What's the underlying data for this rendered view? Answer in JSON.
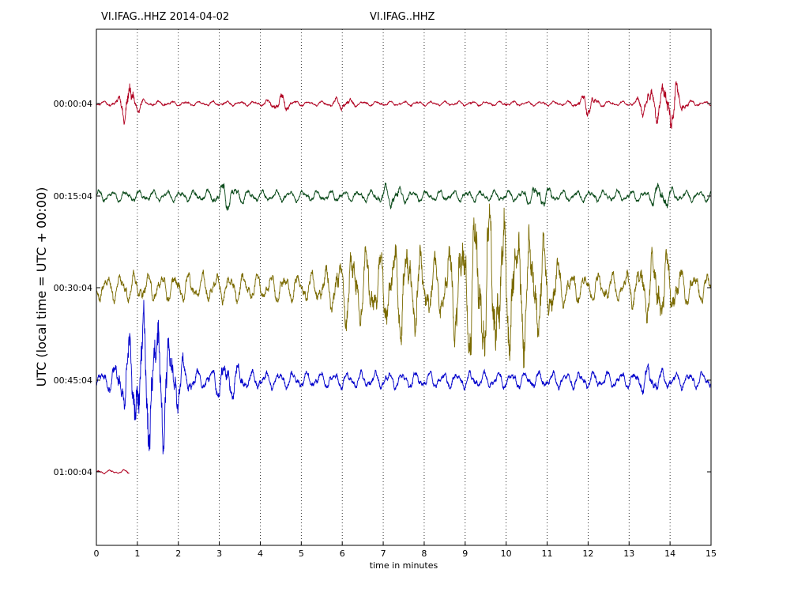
{
  "chart_data": {
    "type": "line",
    "title_left": "VI.IFAG..HHZ 2014-04-02",
    "title_center": "VI.IFAG..HHZ",
    "xlabel": "time in minutes",
    "ylabel": "UTC (local time = UTC + 00:00)",
    "xlim": [
      0,
      15
    ],
    "x_ticks": [
      "0",
      "1",
      "2",
      "3",
      "4",
      "5",
      "6",
      "7",
      "8",
      "9",
      "10",
      "11",
      "12",
      "13",
      "14",
      "15"
    ],
    "y_ticks": [
      "00:00:04",
      "00:15:04",
      "00:30:04",
      "00:45:04",
      "01:00:04"
    ],
    "grid": "vertical dotted",
    "series": [
      {
        "row": "00:00:04",
        "color": "#b00020",
        "x_end": 15,
        "bursts": [
          [
            0.8,
            0.45,
            4.5
          ],
          [
            4.5,
            0.15,
            4.0
          ],
          [
            6.0,
            0.1,
            4.0
          ],
          [
            12.0,
            0.2,
            4.5
          ],
          [
            13.5,
            0.3,
            4.0
          ],
          [
            14.0,
            0.5,
            3.5
          ]
        ],
        "base_amp": 0.05
      },
      {
        "row": "00:15:04",
        "color": "#0a4a1a",
        "x_end": 15,
        "bursts": [
          [
            3.2,
            0.2,
            3.5
          ],
          [
            7.2,
            0.15,
            4.0
          ],
          [
            10.8,
            0.15,
            4.0
          ],
          [
            13.8,
            0.2,
            4.5
          ]
        ],
        "base_amp": 0.12
      },
      {
        "row": "00:30:04",
        "color": "#7a6a00",
        "x_end": 15,
        "bursts": [
          [
            6.3,
            0.6,
            1.8
          ],
          [
            7.5,
            0.8,
            1.8
          ],
          [
            9.1,
            0.8,
            1.5
          ],
          [
            9.8,
            1.0,
            1.2
          ],
          [
            10.7,
            0.6,
            1.8
          ],
          [
            13.7,
            0.5,
            2.0
          ]
        ],
        "base_amp": 0.3
      },
      {
        "row": "00:45:04",
        "color": "#0000cc",
        "x_end": 15,
        "bursts": [
          [
            1.1,
            0.9,
            2.0
          ],
          [
            1.6,
            0.8,
            2.0
          ],
          [
            3.2,
            0.3,
            3.0
          ],
          [
            13.5,
            0.15,
            4.0
          ]
        ],
        "base_amp": 0.18
      },
      {
        "row": "01:00:04",
        "color": "#b00020",
        "x_end": 0.8,
        "bursts": [],
        "base_amp": 0.04
      }
    ]
  }
}
